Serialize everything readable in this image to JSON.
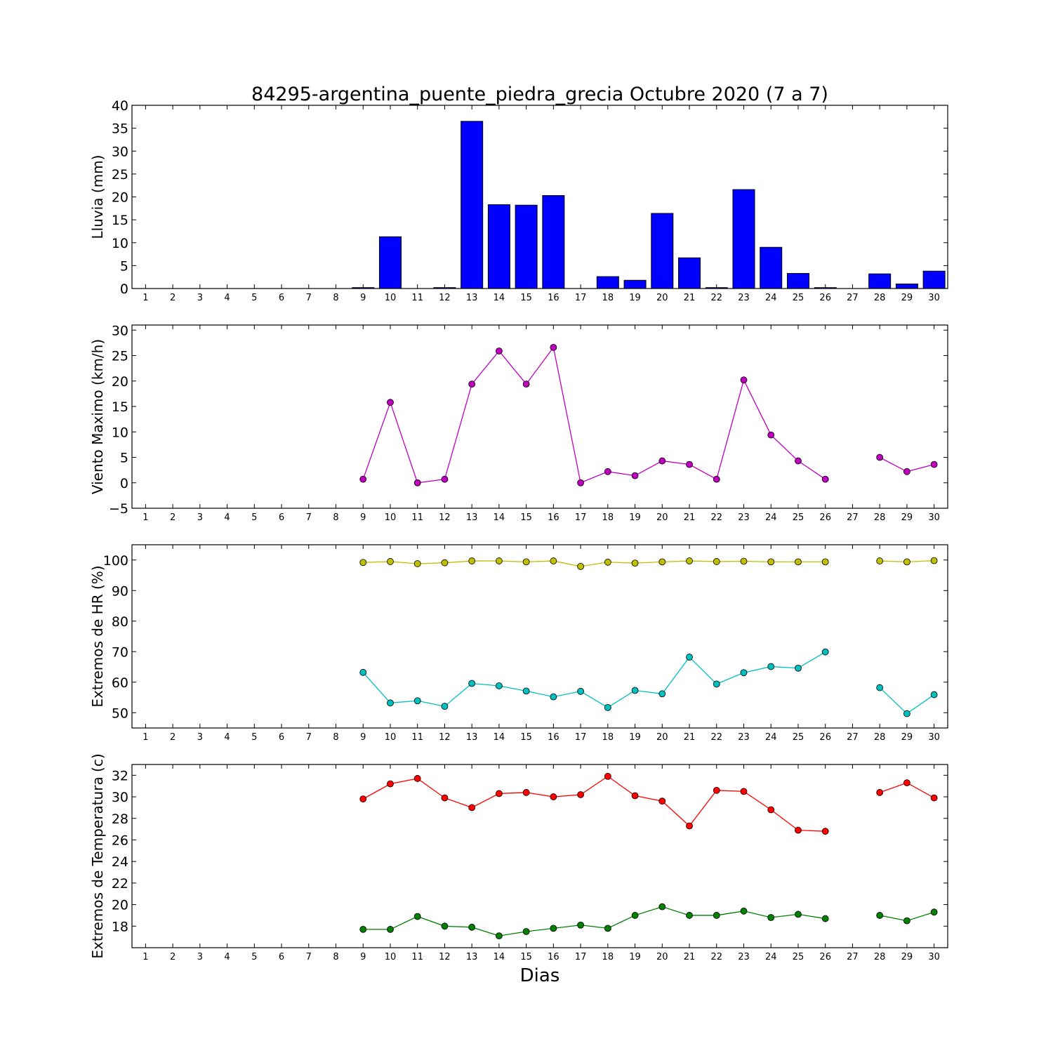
{
  "title": "84295-argentina_puente_piedra_grecia Octubre 2020  (7 a 7)",
  "xlabel": "Dias",
  "chart_data": [
    {
      "type": "bar",
      "ylabel": "Lluvia (mm)",
      "ylim": [
        0,
        40
      ],
      "yticks": [
        0,
        5,
        10,
        15,
        20,
        25,
        30,
        35,
        40
      ],
      "categories": [
        "1",
        "2",
        "3",
        "4",
        "5",
        "6",
        "7",
        "8",
        "9",
        "10",
        "11",
        "12",
        "13",
        "14",
        "15",
        "16",
        "17",
        "18",
        "19",
        "20",
        "21",
        "22",
        "23",
        "24",
        "25",
        "26",
        "27",
        "28",
        "29",
        "30"
      ],
      "series": [
        {
          "color": "#0000ff",
          "x": [
            9,
            10,
            11,
            12,
            13,
            14,
            15,
            16,
            17,
            18,
            19,
            20,
            21,
            22,
            23,
            24,
            25,
            26,
            28,
            29,
            30
          ],
          "values": [
            0.2,
            11.3,
            0,
            0.2,
            36.5,
            18.3,
            18.2,
            20.3,
            0,
            2.6,
            1.8,
            16.4,
            6.7,
            0.2,
            21.6,
            9.0,
            3.3,
            0.2,
            3.2,
            1.0,
            3.8
          ]
        }
      ]
    },
    {
      "type": "line",
      "ylabel": "Viento Maximo (km/h)",
      "ylim": [
        -5,
        31
      ],
      "yticks": [
        -5,
        0,
        5,
        10,
        15,
        20,
        25,
        30
      ],
      "categories": [
        "1",
        "2",
        "3",
        "4",
        "5",
        "6",
        "7",
        "8",
        "9",
        "10",
        "11",
        "12",
        "13",
        "14",
        "15",
        "16",
        "17",
        "18",
        "19",
        "20",
        "21",
        "22",
        "23",
        "24",
        "25",
        "26",
        "27",
        "28",
        "29",
        "30"
      ],
      "series": [
        {
          "color": "#bf00bf",
          "segments": [
            {
              "x": [
                9,
                10,
                11,
                12,
                13,
                14,
                15,
                16,
                17,
                18,
                19,
                20,
                21,
                22,
                23,
                24,
                25,
                26
              ],
              "values": [
                0.7,
                15.8,
                0,
                0.7,
                19.4,
                25.9,
                19.4,
                26.6,
                0,
                2.2,
                1.4,
                4.3,
                3.6,
                0.7,
                20.2,
                9.4,
                4.3,
                0.7
              ]
            },
            {
              "x": [
                28,
                29,
                30
              ],
              "values": [
                5.0,
                2.2,
                3.6
              ]
            }
          ]
        }
      ]
    },
    {
      "type": "line",
      "ylabel": "Extremos de HR (%)",
      "ylim": [
        45,
        105
      ],
      "yticks": [
        50,
        60,
        70,
        80,
        90,
        100
      ],
      "categories": [
        "1",
        "2",
        "3",
        "4",
        "5",
        "6",
        "7",
        "8",
        "9",
        "10",
        "11",
        "12",
        "13",
        "14",
        "15",
        "16",
        "17",
        "18",
        "19",
        "20",
        "21",
        "22",
        "23",
        "24",
        "25",
        "26",
        "27",
        "28",
        "29",
        "30"
      ],
      "series": [
        {
          "color": "#bfbf00",
          "segments": [
            {
              "x": [
                9,
                10,
                11,
                12,
                13,
                14,
                15,
                16,
                17,
                18,
                19,
                20,
                21,
                22,
                23,
                24,
                25,
                26
              ],
              "values": [
                99.2,
                99.5,
                98.8,
                99.1,
                99.7,
                99.7,
                99.4,
                99.7,
                97.9,
                99.3,
                99.0,
                99.4,
                99.7,
                99.5,
                99.6,
                99.4,
                99.4,
                99.4
              ]
            },
            {
              "x": [
                28,
                29,
                30
              ],
              "values": [
                99.7,
                99.4,
                99.8
              ]
            }
          ]
        },
        {
          "color": "#00bfbf",
          "segments": [
            {
              "x": [
                9,
                10,
                11,
                12,
                13,
                14,
                15,
                16,
                17,
                18,
                19,
                20,
                21,
                22,
                23,
                24,
                25,
                26
              ],
              "values": [
                63.2,
                53.2,
                53.9,
                52.1,
                59.6,
                58.8,
                57.1,
                55.2,
                57.0,
                51.7,
                57.3,
                56.2,
                68.2,
                59.4,
                63.1,
                65.1,
                64.6,
                69.9
              ]
            },
            {
              "x": [
                28,
                29,
                30
              ],
              "values": [
                58.2,
                49.7,
                55.9
              ]
            }
          ]
        }
      ]
    },
    {
      "type": "line",
      "ylabel": "Extremos de Temperatura (c)",
      "ylim": [
        16,
        33
      ],
      "yticks": [
        18,
        20,
        22,
        24,
        26,
        28,
        30,
        32
      ],
      "categories": [
        "1",
        "2",
        "3",
        "4",
        "5",
        "6",
        "7",
        "8",
        "9",
        "10",
        "11",
        "12",
        "13",
        "14",
        "15",
        "16",
        "17",
        "18",
        "19",
        "20",
        "21",
        "22",
        "23",
        "24",
        "25",
        "26",
        "27",
        "28",
        "29",
        "30"
      ],
      "series": [
        {
          "color": "#ff0000",
          "segments": [
            {
              "x": [
                9,
                10,
                11,
                12,
                13,
                14,
                15,
                16,
                17,
                18,
                19,
                20,
                21,
                22,
                23,
                24,
                25,
                26
              ],
              "values": [
                29.8,
                31.2,
                31.7,
                29.9,
                29.0,
                30.3,
                30.4,
                30.0,
                30.2,
                31.9,
                30.1,
                29.6,
                27.3,
                30.6,
                30.5,
                28.8,
                26.9,
                26.8
              ]
            },
            {
              "x": [
                28,
                29,
                30
              ],
              "values": [
                30.4,
                31.3,
                29.9
              ]
            }
          ]
        },
        {
          "color": "#007f00",
          "segments": [
            {
              "x": [
                9,
                10,
                11,
                12,
                13,
                14,
                15,
                16,
                17,
                18,
                19,
                20,
                21,
                22,
                23,
                24,
                25,
                26
              ],
              "values": [
                17.7,
                17.7,
                18.9,
                18.0,
                17.9,
                17.1,
                17.5,
                17.8,
                18.1,
                17.8,
                19.0,
                19.8,
                19.0,
                19.0,
                19.4,
                18.8,
                19.1,
                18.7
              ]
            },
            {
              "x": [
                28,
                29,
                30
              ],
              "values": [
                19.0,
                18.5,
                19.3
              ]
            }
          ]
        }
      ]
    }
  ]
}
